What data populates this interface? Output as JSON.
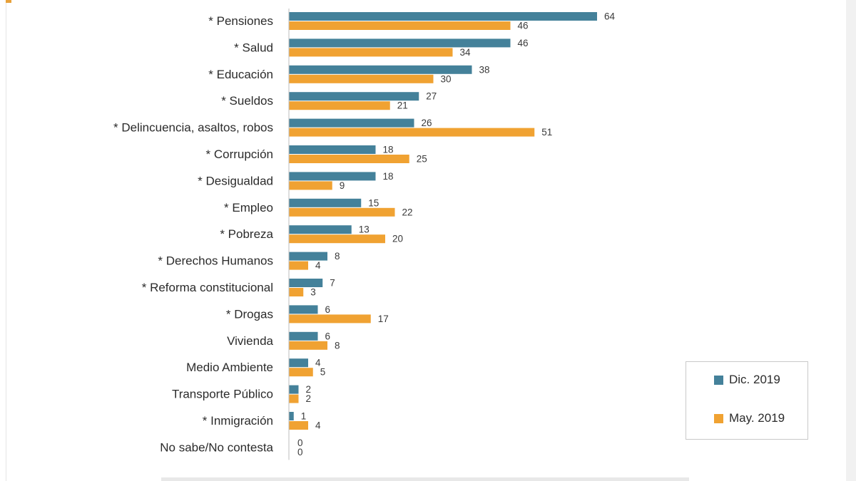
{
  "chart_data": {
    "type": "bar",
    "orientation": "horizontal",
    "categories": [
      "* Pensiones",
      "* Salud",
      "* Educación",
      "* Sueldos",
      "* Delincuencia, asaltos, robos",
      "* Corrupción",
      "* Desigualdad",
      "* Empleo",
      "* Pobreza",
      "* Derechos Humanos",
      "* Reforma constitucional",
      "* Drogas",
      "Vivienda",
      "Medio Ambiente",
      "Transporte Público",
      "* Inmigración",
      "No sabe/No contesta"
    ],
    "series": [
      {
        "name": "Dic. 2019",
        "color": "#44819a",
        "values": [
          64,
          46,
          38,
          27,
          26,
          18,
          18,
          15,
          13,
          8,
          7,
          6,
          6,
          4,
          2,
          1,
          0
        ]
      },
      {
        "name": "May. 2019",
        "color": "#f0a232",
        "values": [
          46,
          34,
          30,
          21,
          51,
          25,
          9,
          22,
          20,
          4,
          3,
          17,
          8,
          5,
          2,
          4,
          0
        ]
      }
    ],
    "xlim": [
      0,
      100
    ],
    "grid": false,
    "legend_position": "bottom-right"
  }
}
